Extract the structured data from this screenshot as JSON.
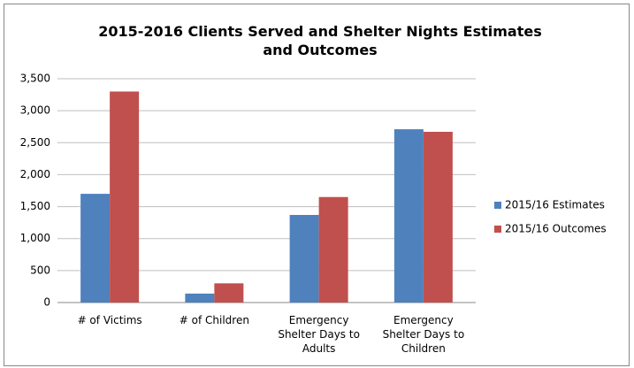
{
  "chart_data": {
    "type": "bar",
    "title": "2015-2016 Clients Served and Shelter Nights Estimates and Outcomes",
    "categories": [
      "# of Victims",
      "# of Children",
      "Emergency Shelter Days to Adults",
      "Emergency Shelter Days to Children"
    ],
    "series": [
      {
        "name": "2015/16 Estimates",
        "color": "#4f81bd",
        "values": [
          1700,
          140,
          1370,
          2710
        ]
      },
      {
        "name": "2015/16 Outcomes",
        "color": "#c0504d",
        "values": [
          3300,
          300,
          1650,
          2670
        ]
      }
    ],
    "ylim": [
      0,
      3500
    ],
    "yticks": [
      0,
      500,
      {
        "value": 1000,
        "label": "1,000"
      },
      {
        "value": 1500,
        "label": "1,500"
      },
      {
        "value": 2000,
        "label": "2,000"
      },
      {
        "value": 2500,
        "label": "2,500"
      },
      {
        "value": 3000,
        "label": "3,000"
      },
      {
        "value": 3500,
        "label": "3,500"
      }
    ],
    "grid": true,
    "legend": "right"
  }
}
